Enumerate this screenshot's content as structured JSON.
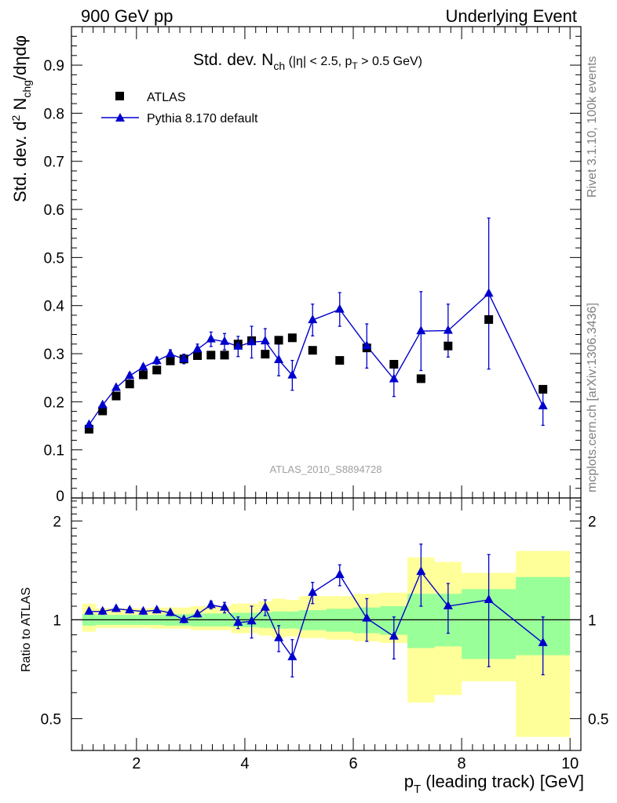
{
  "header": {
    "left": "900 GeV pp",
    "right": "Underlying Event"
  },
  "side_labels": {
    "rivet": "Rivet 3.1.10,  100k events",
    "mcplots": "mcplots.cern.ch [arXiv:1306.3436]"
  },
  "main_plot": {
    "title_prefix": "Std. dev. N",
    "title_sub": "ch",
    "title_suffix_a": " (|η| < 2.5, p",
    "title_sub2": "T",
    "title_suffix_b": " > 0.5 GeV)",
    "ylabel_a": "Std. dev. d",
    "ylabel_sup": "2",
    "ylabel_b": " N",
    "ylabel_sub": "chg",
    "ylabel_c": "/dηdφ",
    "watermark": "ATLAS_2010_S8894728"
  },
  "ratio_plot": {
    "ylabel": "Ratio to ATLAS"
  },
  "x_axis": {
    "label_a": "p",
    "label_sub": "T",
    "label_b": " (leading track) [GeV]"
  },
  "legend": {
    "data_label": "ATLAS",
    "mc_label": "Pythia 8.170 default"
  },
  "colors": {
    "mc": "#0000cc",
    "data": "#000000",
    "band_inner": "#99ff99",
    "band_outer": "#ffff99",
    "side_text": "#808080"
  },
  "chart_data": [
    {
      "type": "scatter",
      "name": "main",
      "title": "Std. dev. N_ch (|η| < 2.5, p_T > 0.5 GeV)",
      "xlabel": "p_T (leading track) [GeV]",
      "ylabel": "Std. dev. d^2 N_chg/dηdφ",
      "xlim": [
        0.8,
        10.2
      ],
      "ylim": [
        0,
        0.98
      ],
      "yticks": [
        0.1,
        0.2,
        0.3,
        0.4,
        0.5,
        0.6,
        0.7,
        0.8,
        0.9
      ],
      "ytick_labels": [
        "0.1",
        "0.2",
        "0.3",
        "0.4",
        "0.5",
        "0.6",
        "0.7",
        "0.8",
        "0.9"
      ],
      "ytick_zero_label": "0",
      "series": [
        {
          "name": "ATLAS",
          "marker": "square",
          "x": [
            1.125,
            1.375,
            1.625,
            1.875,
            2.125,
            2.375,
            2.625,
            2.875,
            3.125,
            3.375,
            3.625,
            3.875,
            4.125,
            4.375,
            4.625,
            4.875,
            5.25,
            5.75,
            6.25,
            6.75,
            7.25,
            7.75,
            8.5,
            9.5
          ],
          "y": [
            0.143,
            0.181,
            0.212,
            0.237,
            0.256,
            0.266,
            0.285,
            0.289,
            0.296,
            0.297,
            0.297,
            0.32,
            0.327,
            0.299,
            0.328,
            0.333,
            0.307,
            0.286,
            0.312,
            0.278,
            0.248,
            0.316,
            0.371,
            0.226
          ]
        },
        {
          "name": "Pythia 8.170 default",
          "marker": "triangle",
          "x": [
            1.125,
            1.375,
            1.625,
            1.875,
            2.125,
            2.375,
            2.625,
            2.875,
            3.125,
            3.375,
            3.625,
            3.875,
            4.125,
            4.375,
            4.625,
            4.875,
            5.25,
            5.75,
            6.25,
            6.75,
            7.25,
            7.75,
            8.5,
            9.5
          ],
          "y": [
            0.152,
            0.193,
            0.229,
            0.254,
            0.272,
            0.285,
            0.299,
            0.289,
            0.309,
            0.33,
            0.325,
            0.315,
            0.324,
            0.326,
            0.287,
            0.255,
            0.37,
            0.392,
            0.316,
            0.247,
            0.347,
            0.348,
            0.425,
            0.191
          ],
          "yerr": [
            0.004,
            0.004,
            0.005,
            0.006,
            0.006,
            0.007,
            0.009,
            0.01,
            0.011,
            0.015,
            0.017,
            0.021,
            0.033,
            0.026,
            0.033,
            0.031,
            0.033,
            0.035,
            0.046,
            0.036,
            0.082,
            0.055,
            0.157,
            0.04
          ]
        }
      ]
    },
    {
      "type": "scatter",
      "name": "ratio",
      "ylabel": "Ratio to ATLAS",
      "xlabel": "p_T (leading track) [GeV]",
      "xlim": [
        0.8,
        10.2
      ],
      "ylim": [
        0.4,
        2.35
      ],
      "log_y": true,
      "xticks": [
        2,
        4,
        6,
        8,
        10
      ],
      "xtick_labels": [
        "2",
        "4",
        "6",
        "8",
        "10"
      ],
      "yticks": [
        0.5,
        1,
        2
      ],
      "ytick_labels": [
        "0.5",
        "1",
        "2"
      ],
      "reference_line": 1,
      "bands": {
        "bins": [
          [
            1.0,
            1.25
          ],
          [
            1.25,
            1.5
          ],
          [
            1.5,
            1.75
          ],
          [
            1.75,
            2.0
          ],
          [
            2.0,
            2.25
          ],
          [
            2.25,
            2.5
          ],
          [
            2.5,
            2.75
          ],
          [
            2.75,
            3.0
          ],
          [
            3.0,
            3.25
          ],
          [
            3.25,
            3.5
          ],
          [
            3.5,
            3.75
          ],
          [
            3.75,
            4.0
          ],
          [
            4.0,
            4.25
          ],
          [
            4.25,
            4.5
          ],
          [
            4.5,
            4.75
          ],
          [
            4.75,
            5.0
          ],
          [
            5.0,
            5.5
          ],
          [
            5.5,
            6.0
          ],
          [
            6.0,
            6.5
          ],
          [
            6.5,
            7.0
          ],
          [
            7.0,
            7.5
          ],
          [
            7.5,
            8.0
          ],
          [
            8.0,
            9.0
          ],
          [
            9.0,
            10.0
          ]
        ],
        "inner_lo": [
          0.96,
          0.965,
          0.965,
          0.965,
          0.965,
          0.965,
          0.96,
          0.96,
          0.955,
          0.955,
          0.955,
          0.95,
          0.95,
          0.945,
          0.94,
          0.94,
          0.93,
          0.92,
          0.91,
          0.9,
          0.82,
          0.83,
          0.76,
          0.78
        ],
        "inner_hi": [
          1.04,
          1.035,
          1.035,
          1.035,
          1.035,
          1.035,
          1.04,
          1.04,
          1.045,
          1.045,
          1.045,
          1.05,
          1.05,
          1.055,
          1.06,
          1.06,
          1.07,
          1.08,
          1.09,
          1.1,
          1.2,
          1.2,
          1.24,
          1.35
        ],
        "outer_lo": [
          0.92,
          0.945,
          0.945,
          0.945,
          0.945,
          0.94,
          0.94,
          0.94,
          0.93,
          0.93,
          0.93,
          0.91,
          0.91,
          0.895,
          0.88,
          0.89,
          0.88,
          0.87,
          0.86,
          0.85,
          0.56,
          0.59,
          0.65,
          0.44
        ],
        "outer_hi": [
          1.12,
          1.085,
          1.085,
          1.085,
          1.085,
          1.09,
          1.09,
          1.09,
          1.1,
          1.1,
          1.1,
          1.12,
          1.12,
          1.14,
          1.16,
          1.15,
          1.18,
          1.18,
          1.2,
          1.21,
          1.55,
          1.5,
          1.39,
          1.62
        ]
      },
      "series": [
        {
          "name": "Pythia 8.170 default",
          "marker": "triangle",
          "x": [
            1.125,
            1.375,
            1.625,
            1.875,
            2.125,
            2.375,
            2.625,
            2.875,
            3.125,
            3.375,
            3.625,
            3.875,
            4.125,
            4.375,
            4.625,
            4.875,
            5.25,
            5.75,
            6.25,
            6.75,
            7.25,
            7.75,
            8.5,
            9.5
          ],
          "y": [
            1.06,
            1.06,
            1.08,
            1.07,
            1.06,
            1.07,
            1.05,
            1.0,
            1.04,
            1.11,
            1.09,
            0.98,
            0.99,
            1.09,
            0.88,
            0.77,
            1.21,
            1.37,
            1.01,
            0.89,
            1.4,
            1.1,
            1.15,
            0.85
          ],
          "yerr": [
            0.02,
            0.02,
            0.02,
            0.02,
            0.02,
            0.02,
            0.02,
            0.02,
            0.02,
            0.03,
            0.04,
            0.04,
            0.11,
            0.06,
            0.08,
            0.1,
            0.09,
            0.1,
            0.15,
            0.13,
            0.3,
            0.19,
            0.43,
            0.17
          ]
        }
      ]
    }
  ]
}
